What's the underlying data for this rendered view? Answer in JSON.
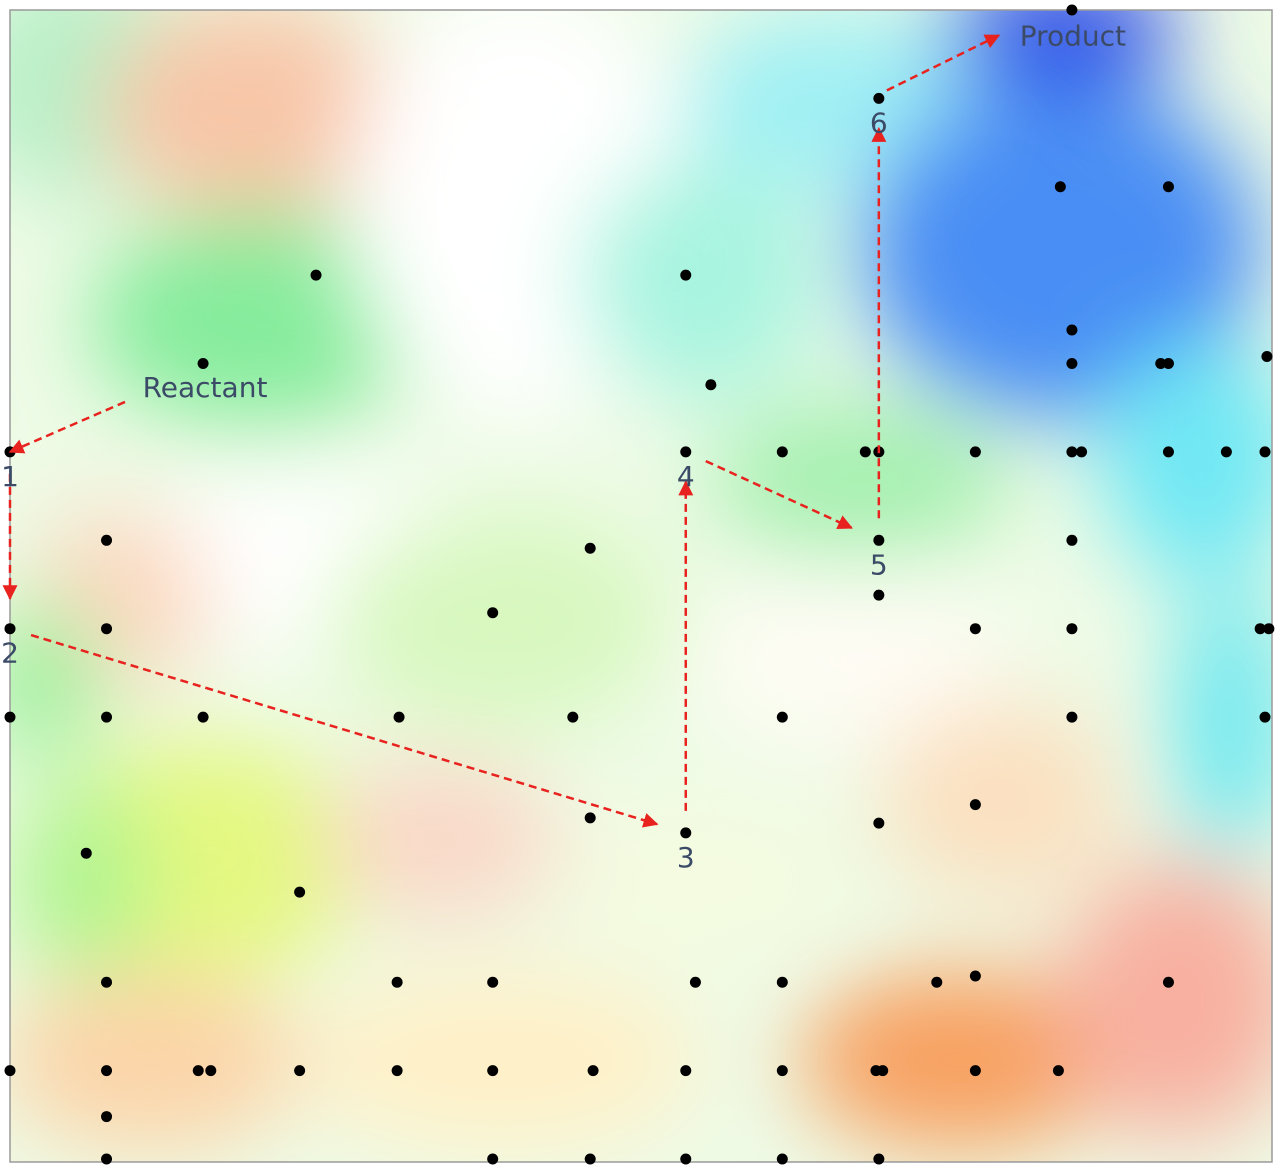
{
  "chart_data": {
    "type": "scatter",
    "xlim": [
      0,
      13
    ],
    "ylim": [
      13,
      0
    ],
    "series": [
      {
        "color": "#000000",
        "x": [
          11,
          9,
          10.88,
          12,
          3.17,
          7,
          11,
          2,
          11,
          11.92,
          12,
          13.02,
          7.26,
          0,
          7,
          8,
          8.86,
          9,
          10,
          11,
          11.1,
          12,
          12.6,
          13,
          1,
          6.01,
          9,
          11,
          9,
          0,
          1,
          5,
          10,
          11,
          12.95,
          13.04,
          0,
          1,
          2,
          4.03,
          5.83,
          8,
          11,
          13,
          10,
          6.01,
          9,
          7,
          0.79,
          3,
          1,
          4.01,
          5,
          7.1,
          8,
          9.6,
          10,
          12,
          0,
          1,
          1.95,
          2.08,
          3,
          4.01,
          5,
          6.04,
          7,
          8,
          8.97,
          9.04,
          10,
          10.86,
          1,
          1,
          5,
          6.01,
          7,
          8,
          9
        ],
        "values": [
          0,
          1,
          2,
          2,
          3,
          3,
          3.62,
          4,
          4,
          4,
          4,
          3.92,
          4.24,
          5,
          5,
          5,
          5,
          5,
          5,
          5,
          5,
          5,
          5,
          5,
          6,
          6.09,
          6,
          6,
          6.62,
          7,
          7,
          6.82,
          7,
          7,
          7,
          7,
          8,
          8,
          8,
          8,
          8,
          8,
          8,
          8,
          8.99,
          9.14,
          9.2,
          9.31,
          9.54,
          9.98,
          11,
          11,
          11,
          11,
          11,
          11,
          10.93,
          11,
          12,
          12,
          12,
          12,
          12,
          12,
          12,
          12,
          12,
          12,
          12,
          12,
          12,
          12,
          12.52,
          13,
          13,
          13,
          13,
          13,
          13
        ]
      }
    ],
    "path": {
      "labels": [
        "1",
        "2",
        "3",
        "4",
        "5",
        "6"
      ],
      "x": [
        0,
        0,
        7,
        7,
        9,
        9
      ],
      "y": [
        5,
        7,
        9.31,
        5,
        6,
        1
      ]
    },
    "start_label": "Reactant",
    "end_label": "Product",
    "path_color": "#e8221e"
  }
}
